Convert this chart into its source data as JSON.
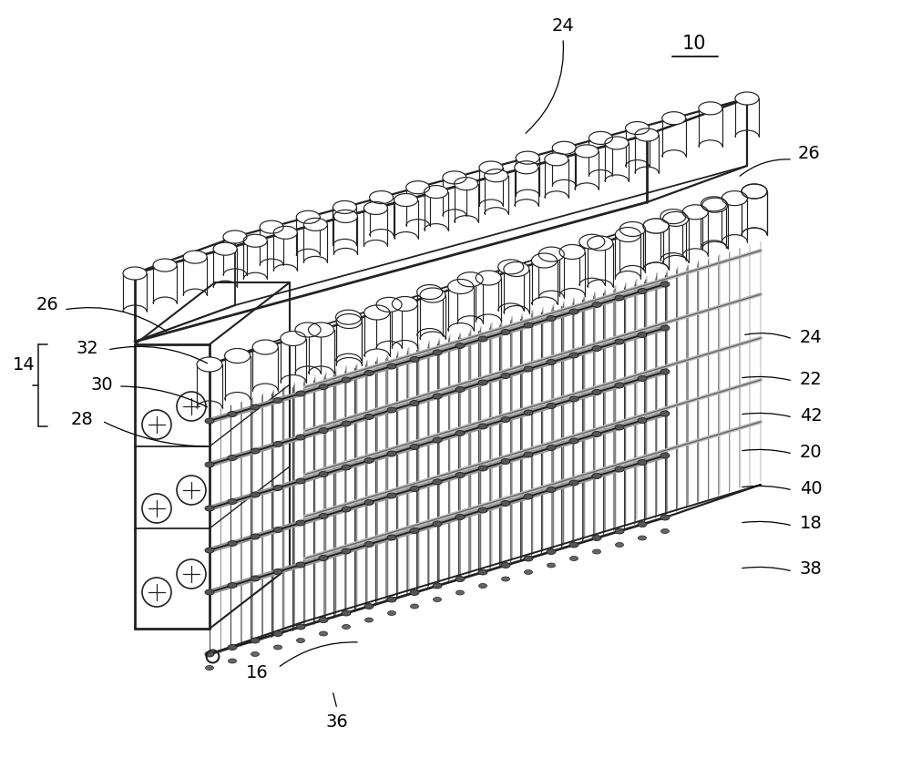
{
  "bg_color": "#ffffff",
  "line_color": "#222222",
  "label_color": "#000000",
  "figsize": [
    10,
    8.32
  ],
  "dpi": 100
}
